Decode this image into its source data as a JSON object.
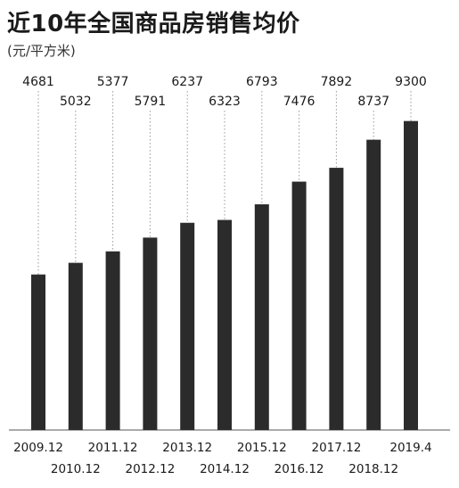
{
  "chart_data": {
    "type": "bar",
    "title": "近10年全国商品房销售均价",
    "unit": "(元/平方米)",
    "categories": [
      "2009.12",
      "2010.12",
      "2011.12",
      "2012.12",
      "2013.12",
      "2014.12",
      "2015.12",
      "2016.12",
      "2017.12",
      "2018.12",
      "2019.4"
    ],
    "values": [
      4681,
      5032,
      5377,
      5791,
      6237,
      6323,
      6793,
      7476,
      7892,
      8737,
      9300
    ],
    "ylim": [
      0,
      11600
    ],
    "grid": false,
    "bar_color": "#2b2b2b",
    "leader_line_color": "#9a9a9a"
  }
}
